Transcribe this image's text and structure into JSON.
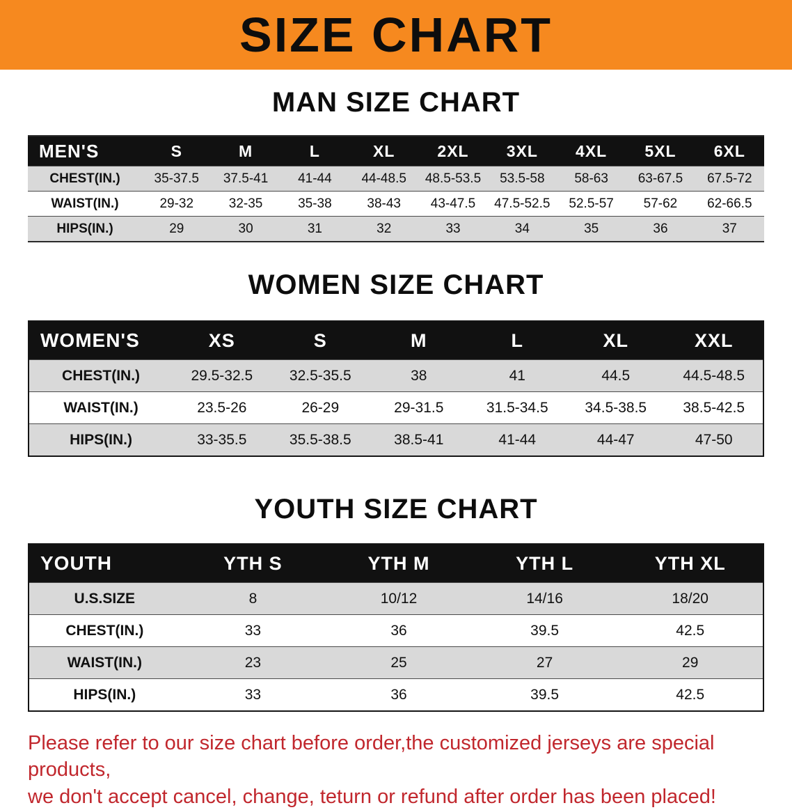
{
  "banner": {
    "title": "SIZE CHART"
  },
  "colors": {
    "banner_bg": "#f6891f",
    "header_bg": "#111111",
    "row_alt": "#d9d9d9",
    "notice_red": "#c1272d"
  },
  "men": {
    "heading": "MAN SIZE CHART",
    "corner": "MEN'S",
    "columns": [
      "S",
      "M",
      "L",
      "XL",
      "2XL",
      "3XL",
      "4XL",
      "5XL",
      "6XL"
    ],
    "rows": [
      {
        "label": "CHEST(IN.)",
        "values": [
          "35-37.5",
          "37.5-41",
          "41-44",
          "44-48.5",
          "48.5-53.5",
          "53.5-58",
          "58-63",
          "63-67.5",
          "67.5-72"
        ]
      },
      {
        "label": "WAIST(IN.)",
        "values": [
          "29-32",
          "32-35",
          "35-38",
          "38-43",
          "43-47.5",
          "47.5-52.5",
          "52.5-57",
          "57-62",
          "62-66.5"
        ]
      },
      {
        "label": "HIPS(IN.)",
        "values": [
          "29",
          "30",
          "31",
          "32",
          "33",
          "34",
          "35",
          "36",
          "37"
        ]
      }
    ]
  },
  "women": {
    "heading": "WOMEN SIZE CHART",
    "corner": "WOMEN'S",
    "columns": [
      "XS",
      "S",
      "M",
      "L",
      "XL",
      "XXL"
    ],
    "rows": [
      {
        "label": "CHEST(IN.)",
        "values": [
          "29.5-32.5",
          "32.5-35.5",
          "38",
          "41",
          "44.5",
          "44.5-48.5"
        ]
      },
      {
        "label": "WAIST(IN.)",
        "values": [
          "23.5-26",
          "26-29",
          "29-31.5",
          "31.5-34.5",
          "34.5-38.5",
          "38.5-42.5"
        ]
      },
      {
        "label": "HIPS(IN.)",
        "values": [
          "33-35.5",
          "35.5-38.5",
          "38.5-41",
          "41-44",
          "44-47",
          "47-50"
        ]
      }
    ]
  },
  "youth": {
    "heading": "YOUTH SIZE CHART",
    "corner": "YOUTH",
    "columns": [
      "YTH S",
      "YTH M",
      "YTH L",
      "YTH XL"
    ],
    "rows": [
      {
        "label": "U.S.SIZE",
        "values": [
          "8",
          "10/12",
          "14/16",
          "18/20"
        ]
      },
      {
        "label": "CHEST(IN.)",
        "values": [
          "33",
          "36",
          "39.5",
          "42.5"
        ]
      },
      {
        "label": "WAIST(IN.)",
        "values": [
          "23",
          "25",
          "27",
          "29"
        ]
      },
      {
        "label": "HIPS(IN.)",
        "values": [
          "33",
          "36",
          "39.5",
          "42.5"
        ]
      }
    ]
  },
  "notice": {
    "line1": "Please refer to our size chart before order,the customized jerseys are special products,",
    "line2": "we don't accept cancel, change, teturn or refund after order has been placed!"
  }
}
